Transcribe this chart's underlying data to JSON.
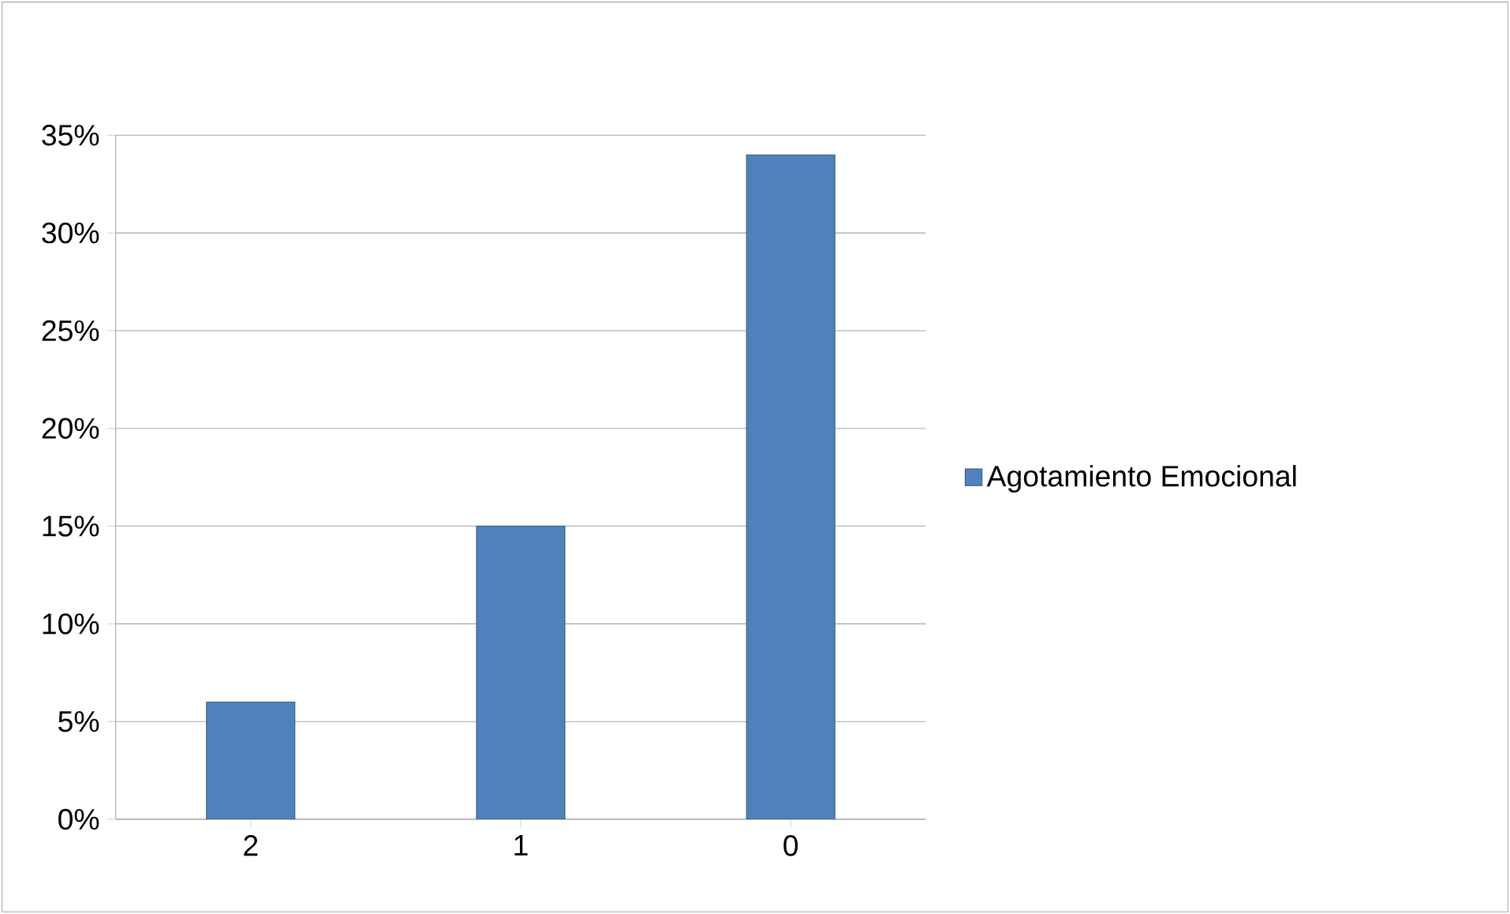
{
  "chart_data": {
    "type": "bar",
    "categories": [
      "2",
      "1",
      "0"
    ],
    "series": [
      {
        "name": "Agotamiento Emocional",
        "color": "#4f81bd",
        "values": [
          6,
          15,
          34
        ]
      }
    ],
    "ylim": [
      0,
      35
    ],
    "yticks": [
      {
        "value": 0,
        "label": "0%"
      },
      {
        "value": 5,
        "label": "5%"
      },
      {
        "value": 10,
        "label": "10%"
      },
      {
        "value": 15,
        "label": "15%"
      },
      {
        "value": 20,
        "label": "20%"
      },
      {
        "value": 25,
        "label": "25%"
      },
      {
        "value": 30,
        "label": "30%"
      },
      {
        "value": 35,
        "label": "35%"
      }
    ],
    "grid": "y",
    "legend": "right"
  }
}
